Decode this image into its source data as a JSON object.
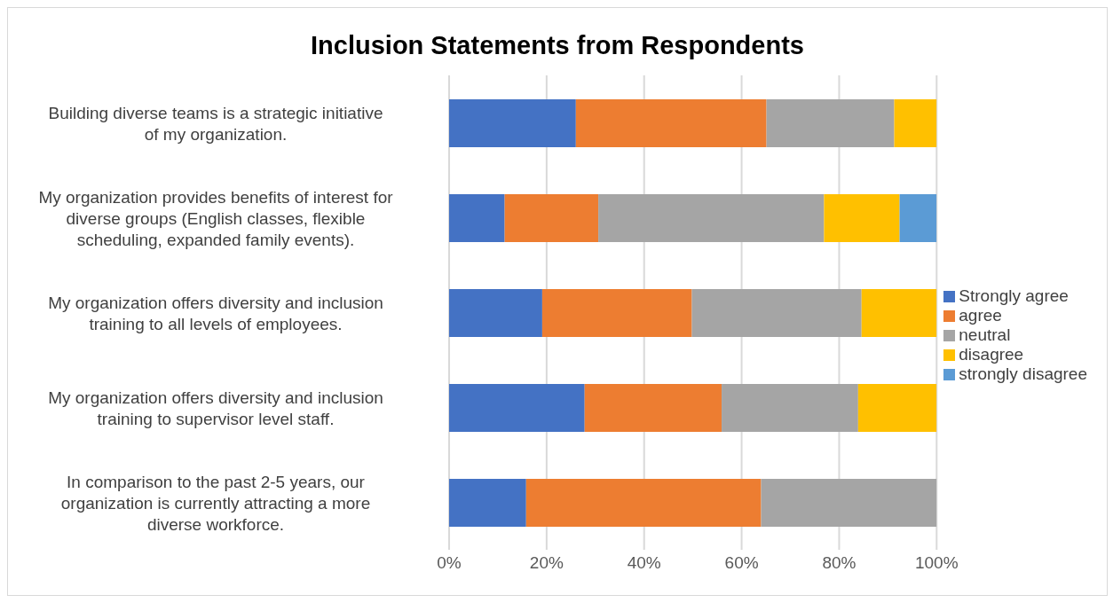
{
  "chart_data": {
    "type": "bar",
    "title": "Inclusion Statements from Respondents",
    "orientation": "horizontal",
    "stacked": true,
    "categories": [
      "Building diverse teams is a strategic initiative of my organization.",
      "My organization provides benefits of interest for diverse groups (English classes, flexible scheduling, expanded family events).",
      "My organization offers diversity and inclusion training to all levels of employees.",
      "My organization offers diversity and inclusion training to supervisor level staff.",
      "In comparison to the past 2-5 years, our organization is currently attracting a more diverse workforce."
    ],
    "series": [
      {
        "name": "Strongly agree",
        "color": "#4472c4",
        "values": [
          26,
          11.4,
          19.1,
          27.8,
          15.8
        ]
      },
      {
        "name": "agree",
        "color": "#ed7d31",
        "values": [
          39.1,
          19.2,
          30.7,
          28.1,
          48.2
        ]
      },
      {
        "name": "neutral",
        "color": "#a5a5a5",
        "values": [
          26.2,
          46.3,
          34.8,
          28,
          36
        ]
      },
      {
        "name": "disagree",
        "color": "#ffc000",
        "values": [
          8.7,
          15.5,
          15.4,
          16.1,
          null
        ]
      },
      {
        "name": "strongly disagree",
        "color": "#5b9bd5",
        "values": [
          null,
          7.6,
          null,
          null,
          null
        ]
      }
    ],
    "xlim": [
      0,
      100
    ],
    "xticks": [
      {
        "value": 0,
        "label": "0%"
      },
      {
        "value": 20,
        "label": "20%"
      },
      {
        "value": 40,
        "label": "40%"
      },
      {
        "value": 60,
        "label": "60%"
      },
      {
        "value": 80,
        "label": "80%"
      },
      {
        "value": 100,
        "label": "100%"
      }
    ],
    "grid": "x",
    "legend": "right"
  }
}
